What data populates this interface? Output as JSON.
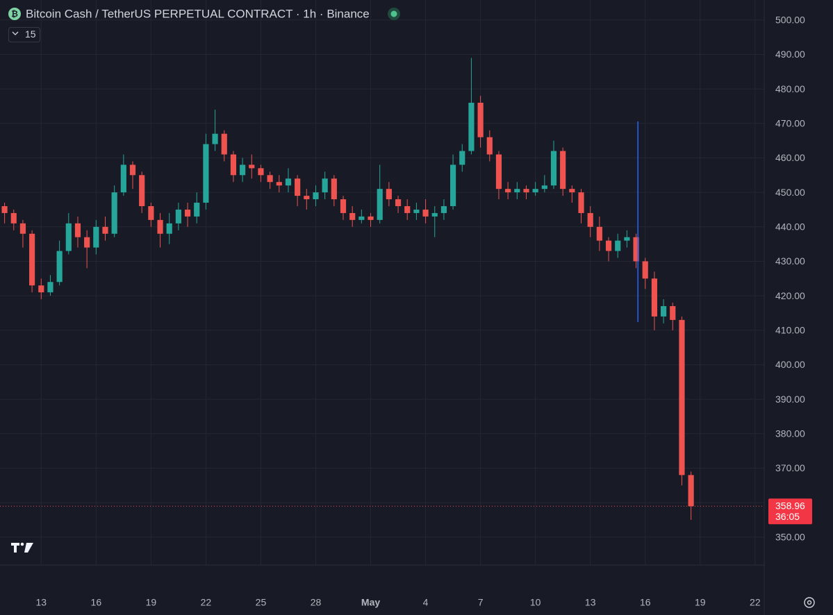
{
  "chart_data": {
    "type": "candlestick",
    "title": "Bitcoin Cash / TetherUS PERPETUAL CONTRACT · 1h · Binance",
    "interval_badge": "15",
    "countdown": "36:05",
    "up_color": "#26a69a",
    "down_color": "#ef5350",
    "grid": true,
    "open": [
      446,
      444,
      441,
      438,
      423,
      421,
      424,
      433,
      441,
      437,
      434,
      440,
      438,
      450,
      458,
      455,
      446,
      442,
      438,
      441,
      445,
      443,
      447,
      464,
      467,
      461,
      455,
      458,
      457,
      455,
      453,
      452,
      454,
      449,
      448,
      450,
      454,
      448,
      444,
      442,
      443,
      442,
      451,
      448,
      446,
      444,
      445,
      443,
      444,
      446,
      458,
      462,
      476,
      466,
      461,
      451,
      450,
      451,
      450,
      451,
      452,
      462,
      451,
      450,
      444,
      440,
      436,
      433,
      436,
      437,
      430,
      425,
      414,
      417,
      413,
      368
    ],
    "high": [
      447,
      445,
      442,
      439,
      425,
      426,
      436,
      444,
      443,
      439,
      442,
      443,
      452,
      461,
      459,
      456,
      447,
      444,
      444,
      447,
      447,
      450,
      467,
      474,
      468,
      462,
      460,
      461,
      458,
      456,
      455,
      457,
      455,
      451,
      452,
      456,
      455,
      449,
      446,
      445,
      444,
      458,
      453,
      449,
      448,
      447,
      448,
      446,
      448,
      461,
      464,
      489,
      478,
      468,
      462,
      453,
      453,
      452,
      453,
      455,
      465,
      463,
      452,
      451,
      446,
      443,
      437,
      438,
      439,
      438,
      431,
      427,
      419,
      418,
      414,
      369
    ],
    "low": [
      441,
      439,
      434,
      421,
      419,
      420,
      423,
      432,
      434,
      428,
      432,
      436,
      437,
      449,
      451,
      444,
      440,
      434,
      435,
      439,
      440,
      441,
      445,
      462,
      459,
      453,
      453,
      454,
      453,
      451,
      450,
      450,
      446,
      445,
      446,
      448,
      446,
      442,
      440,
      441,
      440,
      441,
      446,
      444,
      442,
      442,
      441,
      437,
      442,
      445,
      456,
      461,
      463,
      459,
      448,
      448,
      448,
      448,
      449,
      450,
      451,
      449,
      447,
      441,
      437,
      433,
      430,
      431,
      434,
      428,
      422,
      410,
      412,
      410,
      365,
      355
    ],
    "close": [
      444,
      441,
      438,
      423,
      421,
      424,
      433,
      441,
      437,
      434,
      440,
      438,
      450,
      458,
      455,
      446,
      442,
      438,
      441,
      445,
      443,
      447,
      464,
      467,
      461,
      455,
      458,
      457,
      455,
      453,
      452,
      454,
      449,
      448,
      450,
      454,
      448,
      444,
      442,
      443,
      442,
      451,
      448,
      446,
      444,
      445,
      443,
      444,
      446,
      458,
      462,
      476,
      466,
      461,
      451,
      450,
      451,
      450,
      451,
      452,
      462,
      451,
      450,
      444,
      440,
      436,
      433,
      436,
      437,
      430,
      425,
      414,
      417,
      413,
      368,
      358.96
    ],
    "xlim": [
      0,
      83.5
    ],
    "xticks": [
      {
        "value": 4.5,
        "label": "13"
      },
      {
        "value": 10.5,
        "label": "16"
      },
      {
        "value": 16.5,
        "label": "19"
      },
      {
        "value": 22.5,
        "label": "22"
      },
      {
        "value": 28.5,
        "label": "25"
      },
      {
        "value": 34.5,
        "label": "28"
      },
      {
        "value": 40.5,
        "label": "May"
      },
      {
        "value": 46.5,
        "label": "4"
      },
      {
        "value": 52.5,
        "label": "7"
      },
      {
        "value": 58.5,
        "label": "10"
      },
      {
        "value": 64.5,
        "label": "13"
      },
      {
        "value": 70.5,
        "label": "16"
      },
      {
        "value": 76.5,
        "label": "19"
      },
      {
        "value": 82.5,
        "label": "22"
      }
    ],
    "ylim": [
      341.9,
      505.8
    ],
    "yticks": [
      {
        "value": 350,
        "label": "350.00"
      },
      {
        "value": 360,
        "label": "360.00"
      },
      {
        "value": 370,
        "label": "370.00"
      },
      {
        "value": 380,
        "label": "380.00"
      },
      {
        "value": 390,
        "label": "390.00"
      },
      {
        "value": 400,
        "label": "400.00"
      },
      {
        "value": 410,
        "label": "410.00"
      },
      {
        "value": 420,
        "label": "420.00"
      },
      {
        "value": 430,
        "label": "430.00"
      },
      {
        "value": 440,
        "label": "440.00"
      },
      {
        "value": 450,
        "label": "450.00"
      },
      {
        "value": 460,
        "label": "460.00"
      },
      {
        "value": 470,
        "label": "470.00"
      },
      {
        "value": 480,
        "label": "480.00"
      },
      {
        "value": 490,
        "label": "490.00"
      },
      {
        "value": 500,
        "label": "500.00"
      }
    ],
    "marker_line": {
      "x": 69.7,
      "y_range": [
        412.4,
        470.6
      ],
      "color": "#2962ff"
    }
  }
}
